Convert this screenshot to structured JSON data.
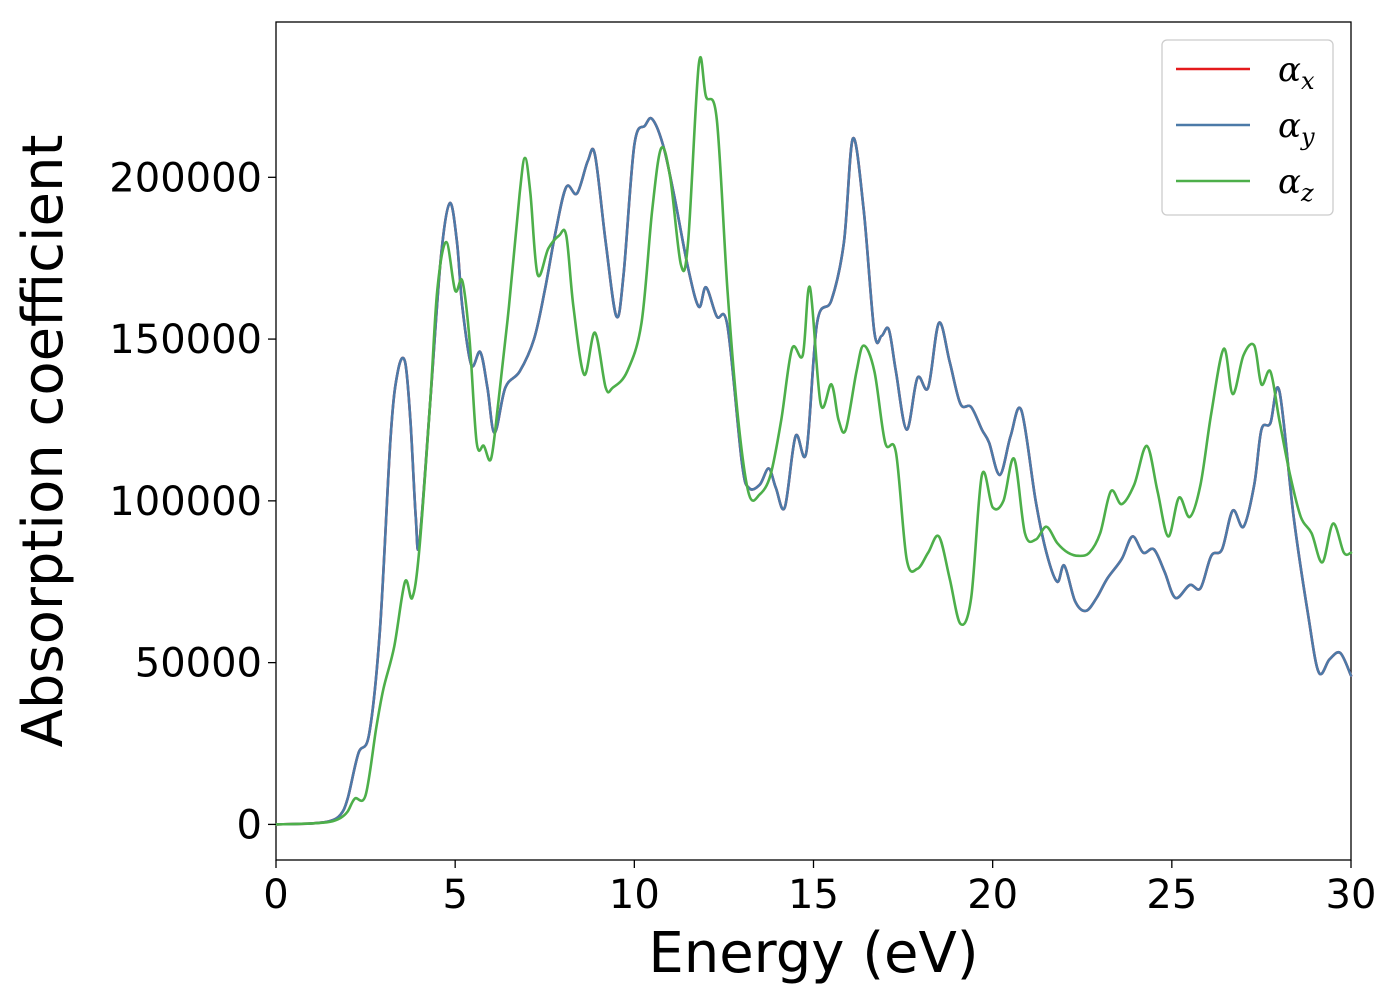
{
  "chart_data": {
    "type": "line",
    "title": "",
    "xlabel": "Energy (eV)",
    "ylabel": "Absorption coefficient",
    "xlim": [
      0,
      30
    ],
    "ylim": [
      -11000,
      248000
    ],
    "xticks": [
      0,
      5,
      10,
      15,
      20,
      25,
      30
    ],
    "xtick_labels": [
      "0",
      "5",
      "10",
      "15",
      "20",
      "25",
      "30"
    ],
    "yticks": [
      0,
      50000,
      100000,
      150000,
      200000
    ],
    "ytick_labels": [
      "0",
      "50000",
      "100000",
      "150000",
      "200000"
    ],
    "grid": false,
    "legend_position": "top-right",
    "series": [
      {
        "name": "αx",
        "symbol": "α",
        "subscript": "x",
        "color": "#e41a1c",
        "x": [
          0,
          1,
          1.5,
          1.8,
          2.0,
          2.3,
          2.6,
          2.9,
          3.2,
          3.4,
          3.6,
          3.75,
          3.9,
          4.0,
          4.3,
          4.6,
          4.85,
          5.05,
          5.2,
          5.45,
          5.7,
          5.9,
          6.1,
          6.4,
          6.8,
          7.2,
          7.5,
          7.8,
          8.1,
          8.4,
          8.7,
          8.9,
          9.2,
          9.5,
          9.7,
          10.0,
          10.3,
          10.5,
          10.8,
          11.1,
          11.5,
          11.8,
          12.0,
          12.3,
          12.6,
          13.0,
          13.2,
          13.5,
          13.75,
          13.95,
          14.2,
          14.5,
          14.8,
          15.1,
          15.5,
          15.85,
          16.1,
          16.4,
          16.7,
          16.9,
          17.1,
          17.3,
          17.6,
          17.9,
          18.2,
          18.5,
          18.8,
          19.1,
          19.4,
          19.7,
          19.9,
          20.2,
          20.5,
          20.8,
          21.2,
          21.5,
          21.8,
          22.0,
          22.3,
          22.6,
          22.9,
          23.2,
          23.6,
          23.9,
          24.2,
          24.5,
          24.8,
          25.1,
          25.5,
          25.8,
          26.1,
          26.4,
          26.7,
          27.0,
          27.3,
          27.5,
          27.75,
          28.0,
          28.4,
          28.8,
          29.1,
          29.4,
          29.7,
          30.0
        ],
        "y": [
          0,
          300,
          1000,
          3000,
          8000,
          22000,
          28000,
          60000,
          120000,
          140000,
          143000,
          125000,
          95000,
          87000,
          130000,
          175000,
          192000,
          180000,
          160000,
          142000,
          146000,
          135000,
          121000,
          135000,
          140000,
          150000,
          165000,
          183000,
          197000,
          195000,
          205000,
          207000,
          180000,
          157000,
          170000,
          210000,
          216000,
          218000,
          210000,
          195000,
          172000,
          160000,
          166000,
          157000,
          154000,
          112000,
          104000,
          105000,
          110000,
          104000,
          98000,
          120000,
          115000,
          155000,
          162000,
          180000,
          212000,
          190000,
          152000,
          151000,
          153000,
          140000,
          122000,
          138000,
          135000,
          155000,
          143000,
          130000,
          129000,
          122000,
          118000,
          108000,
          120000,
          128000,
          100000,
          84000,
          75000,
          80000,
          69000,
          66000,
          70000,
          76000,
          82000,
          89000,
          84000,
          85000,
          78000,
          70000,
          74000,
          73000,
          83000,
          85000,
          97000,
          92000,
          105000,
          122000,
          124000,
          134000,
          95000,
          65000,
          47000,
          51000,
          53000,
          46000
        ]
      },
      {
        "name": "αy",
        "symbol": "α",
        "subscript": "y",
        "color": "#4c7aa8",
        "x": [
          0,
          1,
          1.5,
          1.8,
          2.0,
          2.3,
          2.6,
          2.9,
          3.2,
          3.4,
          3.6,
          3.75,
          3.9,
          4.0,
          4.3,
          4.6,
          4.85,
          5.05,
          5.2,
          5.45,
          5.7,
          5.9,
          6.1,
          6.4,
          6.8,
          7.2,
          7.5,
          7.8,
          8.1,
          8.4,
          8.7,
          8.9,
          9.2,
          9.5,
          9.7,
          10.0,
          10.3,
          10.5,
          10.8,
          11.1,
          11.5,
          11.8,
          12.0,
          12.3,
          12.6,
          13.0,
          13.2,
          13.5,
          13.75,
          13.95,
          14.2,
          14.5,
          14.8,
          15.1,
          15.5,
          15.85,
          16.1,
          16.4,
          16.7,
          16.9,
          17.1,
          17.3,
          17.6,
          17.9,
          18.2,
          18.5,
          18.8,
          19.1,
          19.4,
          19.7,
          19.9,
          20.2,
          20.5,
          20.8,
          21.2,
          21.5,
          21.8,
          22.0,
          22.3,
          22.6,
          22.9,
          23.2,
          23.6,
          23.9,
          24.2,
          24.5,
          24.8,
          25.1,
          25.5,
          25.8,
          26.1,
          26.4,
          26.7,
          27.0,
          27.3,
          27.5,
          27.75,
          28.0,
          28.4,
          28.8,
          29.1,
          29.4,
          29.7,
          30.0
        ],
        "y": [
          0,
          300,
          1000,
          3000,
          8000,
          22000,
          28000,
          60000,
          120000,
          140000,
          143000,
          125000,
          95000,
          87000,
          130000,
          175000,
          192000,
          180000,
          160000,
          142000,
          146000,
          135000,
          121000,
          135000,
          140000,
          150000,
          165000,
          183000,
          197000,
          195000,
          205000,
          207000,
          180000,
          157000,
          170000,
          210000,
          216000,
          218000,
          210000,
          195000,
          172000,
          160000,
          166000,
          157000,
          154000,
          112000,
          104000,
          105000,
          110000,
          104000,
          98000,
          120000,
          115000,
          155000,
          162000,
          180000,
          212000,
          190000,
          152000,
          151000,
          153000,
          140000,
          122000,
          138000,
          135000,
          155000,
          143000,
          130000,
          129000,
          122000,
          118000,
          108000,
          120000,
          128000,
          100000,
          84000,
          75000,
          80000,
          69000,
          66000,
          70000,
          76000,
          82000,
          89000,
          84000,
          85000,
          78000,
          70000,
          74000,
          73000,
          83000,
          85000,
          97000,
          92000,
          105000,
          122000,
          124000,
          134000,
          95000,
          65000,
          47000,
          51000,
          53000,
          46000
        ]
      },
      {
        "name": "αz",
        "symbol": "α",
        "subscript": "z",
        "color": "#4daf4a",
        "x": [
          0,
          1,
          1.5,
          1.8,
          2.0,
          2.2,
          2.5,
          2.8,
          3.0,
          3.3,
          3.6,
          3.8,
          4.0,
          4.3,
          4.5,
          4.75,
          5.0,
          5.2,
          5.4,
          5.6,
          5.8,
          6.0,
          6.2,
          6.5,
          6.8,
          6.95,
          7.1,
          7.3,
          7.6,
          7.9,
          8.1,
          8.3,
          8.6,
          8.9,
          9.2,
          9.4,
          9.8,
          10.2,
          10.5,
          10.75,
          11.0,
          11.3,
          11.5,
          11.8,
          12.0,
          12.3,
          12.6,
          12.9,
          13.2,
          13.5,
          13.8,
          14.1,
          14.4,
          14.7,
          14.9,
          15.2,
          15.5,
          15.7,
          15.9,
          16.2,
          16.4,
          16.7,
          17.0,
          17.3,
          17.6,
          17.9,
          18.2,
          18.5,
          18.8,
          19.1,
          19.4,
          19.7,
          20.0,
          20.3,
          20.6,
          20.9,
          21.2,
          21.5,
          21.8,
          22.1,
          22.4,
          22.7,
          23.0,
          23.3,
          23.6,
          23.95,
          24.3,
          24.6,
          24.9,
          25.2,
          25.5,
          25.8,
          26.1,
          26.45,
          26.7,
          27.0,
          27.3,
          27.5,
          27.75,
          28.0,
          28.3,
          28.6,
          28.9,
          29.2,
          29.5,
          29.8,
          30.0
        ],
        "y": [
          0,
          300,
          800,
          2000,
          4000,
          8000,
          9000,
          30000,
          42000,
          55000,
          75000,
          70000,
          85000,
          130000,
          165000,
          180000,
          165000,
          168000,
          150000,
          118000,
          117000,
          113000,
          130000,
          160000,
          195000,
          206000,
          195000,
          170000,
          178000,
          182000,
          182000,
          160000,
          139000,
          152000,
          135000,
          135000,
          140000,
          155000,
          190000,
          209000,
          200000,
          173000,
          180000,
          235000,
          225000,
          218000,
          165000,
          125000,
          102000,
          102000,
          108000,
          125000,
          147000,
          145000,
          166000,
          130000,
          136000,
          125000,
          122000,
          140000,
          148000,
          140000,
          118000,
          115000,
          82000,
          79000,
          84000,
          89000,
          76000,
          62000,
          70000,
          108000,
          98000,
          100000,
          113000,
          90000,
          88000,
          92000,
          87000,
          84000,
          83000,
          84000,
          90000,
          103000,
          99000,
          105000,
          117000,
          103000,
          89000,
          101000,
          95000,
          105000,
          127000,
          147000,
          133000,
          145000,
          148000,
          136000,
          140000,
          125000,
          108000,
          95000,
          90000,
          81000,
          93000,
          84000,
          84000
        ]
      }
    ]
  }
}
